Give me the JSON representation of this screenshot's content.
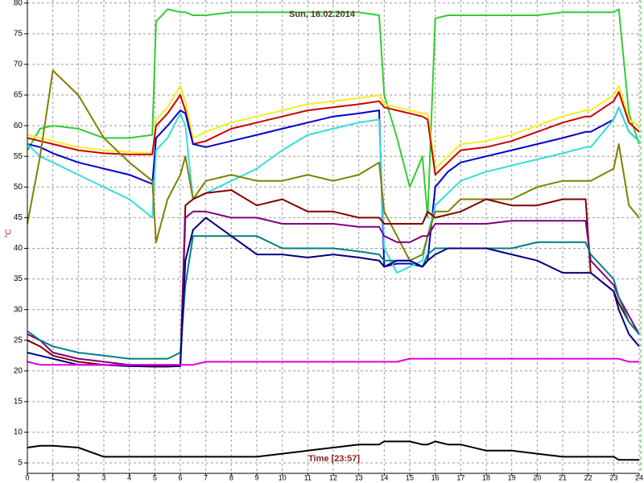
{
  "chart_data": {
    "type": "line",
    "annotations": [
      "Sun, 16.02.2014",
      "Time [23:57]"
    ],
    "ylabel": "°C",
    "x": [
      0,
      0.5,
      1,
      2,
      3,
      4,
      4.9,
      5.05,
      5.5,
      6,
      6.2,
      6.5,
      7,
      8,
      9,
      10,
      11,
      12,
      13,
      13.8,
      14,
      14.5,
      15,
      15.5,
      15.7,
      16,
      16.5,
      17,
      18,
      19,
      20,
      21,
      21.9,
      22.1,
      23,
      23.2,
      23.6,
      24
    ],
    "xlim": [
      0,
      24
    ],
    "xticks": [
      0,
      1,
      2,
      3,
      4,
      5,
      6,
      7,
      8,
      9,
      10,
      11,
      12,
      13,
      14,
      15,
      16,
      17,
      18,
      19,
      20,
      21,
      22,
      23,
      24
    ],
    "ylim": [
      3.3,
      80.5
    ],
    "yticks": [
      5,
      10,
      15,
      20,
      25,
      30,
      35,
      40,
      45,
      50,
      55,
      60,
      65,
      70,
      75,
      80
    ],
    "grid": true,
    "series": [
      {
        "color": "#33cc33",
        "values": [
          56,
          59.5,
          60,
          59.5,
          58,
          58,
          58.5,
          77,
          79,
          78.5,
          78.5,
          78,
          78,
          78.5,
          78.5,
          78.5,
          78.5,
          78.5,
          78.5,
          78,
          65,
          58,
          50,
          55,
          45,
          77.5,
          78,
          78,
          78,
          78,
          78,
          78.5,
          78.5,
          78.5,
          78.5,
          79,
          62,
          57
        ]
      },
      {
        "color": "#f0f020",
        "values": [
          58.5,
          58,
          57.5,
          56.5,
          56,
          55.7,
          55.5,
          61,
          63,
          66.5,
          64,
          58,
          59,
          60.5,
          61.5,
          62.5,
          63.5,
          64,
          64.5,
          65,
          63.5,
          63,
          62.5,
          62,
          62,
          53,
          55,
          57,
          57.5,
          58.5,
          60,
          61.5,
          62.5,
          62.5,
          65,
          66.5,
          61,
          60
        ]
      },
      {
        "color": "#cc0000",
        "values": [
          58,
          57.5,
          57,
          56,
          55.5,
          55.3,
          55.3,
          60,
          62,
          65,
          62.5,
          57,
          57.5,
          59.5,
          60.5,
          61.5,
          62.5,
          63,
          63.5,
          64,
          63,
          62.5,
          62,
          61.5,
          61,
          52,
          54,
          56,
          56.5,
          57.5,
          59,
          60.5,
          61.5,
          61.5,
          64,
          65.5,
          60.5,
          59
        ]
      },
      {
        "color": "#0000cc",
        "values": [
          57,
          56.5,
          55.5,
          54,
          53,
          52,
          50.5,
          58,
          60,
          62.5,
          62,
          57,
          56.5,
          57.5,
          58.5,
          59.5,
          60.5,
          61.5,
          62,
          62.5,
          37,
          37.5,
          37.5,
          37,
          38,
          50,
          52.5,
          54,
          55,
          56,
          57,
          58,
          59,
          59,
          61,
          63,
          59,
          57.5
        ]
      },
      {
        "color": "#33dddd",
        "values": [
          57,
          55,
          54,
          52,
          50,
          48,
          45,
          56,
          58,
          62,
          60,
          48,
          49,
          51,
          53,
          56,
          58.5,
          59.5,
          60.5,
          61,
          40,
          36,
          37,
          38,
          42,
          47,
          49,
          51,
          52.5,
          53.5,
          54.5,
          55.5,
          56.5,
          56.5,
          61,
          63,
          59,
          57.5
        ]
      },
      {
        "color": "#808000",
        "values": [
          44,
          55,
          69,
          65,
          58,
          54,
          51,
          41,
          48,
          52,
          55,
          48,
          51,
          52,
          51,
          51,
          52,
          51,
          52,
          54,
          46,
          42,
          38,
          39,
          42,
          46,
          46,
          48,
          48,
          48,
          50,
          51,
          51,
          51,
          53,
          57,
          47,
          45
        ]
      },
      {
        "color": "#800000",
        "values": [
          25,
          24,
          22.5,
          21.5,
          21,
          20.8,
          20.7,
          20.7,
          20.7,
          20.8,
          47,
          48,
          49,
          49.5,
          47,
          48,
          46,
          46,
          45,
          45,
          44,
          44,
          44,
          44,
          46,
          45,
          45.5,
          46,
          48,
          47,
          47,
          48,
          48,
          36,
          33,
          31,
          28,
          26
        ]
      },
      {
        "color": "#800080",
        "values": [
          26,
          25,
          23,
          22,
          21.5,
          21,
          21,
          21,
          21,
          21,
          45,
          46,
          46,
          45,
          45,
          44,
          44,
          44,
          43.5,
          43.5,
          42,
          41,
          41,
          42,
          42,
          44,
          44,
          44,
          44,
          44.5,
          44.5,
          44.5,
          44.5,
          38,
          34,
          32,
          29,
          26
        ]
      },
      {
        "color": "#008080",
        "values": [
          26.5,
          25,
          24,
          23,
          22.5,
          22,
          22,
          22,
          22,
          23,
          34,
          42,
          42,
          42,
          42,
          40,
          40,
          40,
          39.5,
          39,
          38,
          38,
          38,
          37,
          39,
          40,
          40,
          40,
          40,
          40,
          41,
          41,
          41,
          39,
          35,
          32,
          28,
          26
        ]
      },
      {
        "color": "#000080",
        "values": [
          23,
          22.5,
          22,
          21,
          21,
          20.8,
          20.8,
          20.8,
          20.8,
          20.8,
          38,
          43,
          45,
          42,
          39,
          39,
          38.5,
          39,
          38.5,
          38,
          37,
          38,
          38,
          37,
          38,
          39,
          40,
          40,
          40,
          39,
          38,
          36,
          36,
          36,
          33,
          30,
          26,
          24
        ]
      },
      {
        "color": "#dd00dd",
        "values": [
          21.5,
          21,
          21,
          21,
          21,
          21,
          21,
          21,
          21,
          21,
          21,
          21,
          21.5,
          21.5,
          21.5,
          21.5,
          21.5,
          21.5,
          21.5,
          21.5,
          21.5,
          21.5,
          22,
          22,
          22,
          22,
          22,
          22,
          22,
          22,
          22,
          22,
          22,
          22,
          22,
          22,
          21.5,
          21.5
        ]
      },
      {
        "color": "#000000",
        "values": [
          7.5,
          7.8,
          7.8,
          7.5,
          6,
          6,
          6,
          6,
          6,
          6,
          6,
          6,
          6,
          6,
          6,
          6.5,
          7,
          7.5,
          8,
          8,
          8.5,
          8.5,
          8.5,
          8,
          8,
          8.5,
          8,
          8,
          7,
          7,
          6.5,
          6,
          6,
          6,
          6,
          5.5,
          5.5,
          5.5
        ]
      }
    ]
  }
}
